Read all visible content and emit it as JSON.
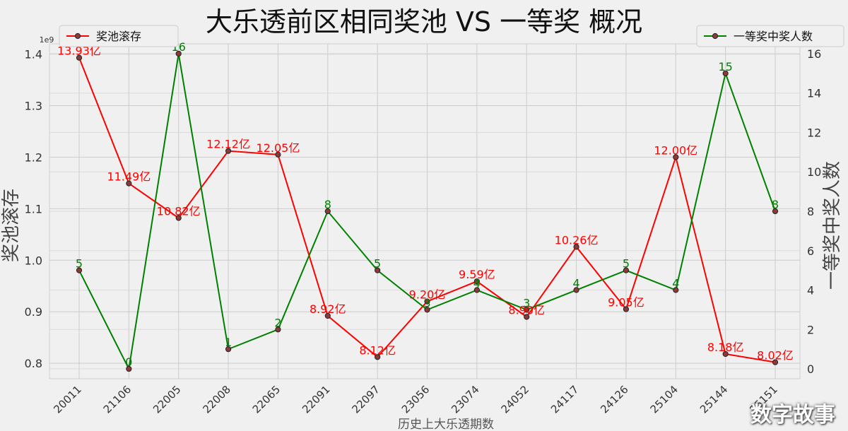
{
  "chart_data": {
    "type": "line",
    "title": "大乐透前区相同奖池 VS 一等奖 概况",
    "xlabel": "历史上大乐透期数",
    "ylabel_left": "奖池滚存",
    "ylabel_right": "一等奖中奖人数",
    "left_axis_multiplier": "1e9",
    "categories": [
      "20011",
      "21106",
      "22005",
      "22008",
      "22065",
      "22091",
      "22097",
      "23056",
      "23074",
      "24052",
      "24117",
      "24126",
      "25104",
      "25144",
      "25151"
    ],
    "ylim_left": [
      0.77,
      1.42
    ],
    "ylim_right": [
      -0.5,
      16.5
    ],
    "yticks_left": [
      "0.8",
      "0.9",
      "1.0",
      "1.1",
      "1.2",
      "1.3",
      "1.4"
    ],
    "yticks_right": [
      "0",
      "2",
      "4",
      "6",
      "8",
      "10",
      "12",
      "14",
      "16"
    ],
    "grid": true,
    "series": [
      {
        "name": "奖池滚存",
        "axis": "left",
        "color": "#ff0000",
        "values": [
          1.393,
          1.149,
          1.082,
          1.212,
          1.205,
          0.892,
          0.812,
          0.92,
          0.959,
          0.89,
          1.026,
          0.905,
          1.2,
          0.818,
          0.802
        ],
        "labels": [
          "13.93亿",
          "11.49亿",
          "10.82亿",
          "12.12亿",
          "12.05亿",
          "8.92亿",
          "8.12亿",
          "9.20亿",
          "9.59亿",
          "8.90亿",
          "10.26亿",
          "9.05亿",
          "12.00亿",
          "8.18亿",
          "8.02亿"
        ]
      },
      {
        "name": "一等奖中奖人数",
        "axis": "right",
        "color": "#008000",
        "values": [
          5,
          0,
          16,
          1,
          2,
          8,
          5,
          3,
          4,
          3,
          4,
          5,
          4,
          15,
          8
        ],
        "labels": [
          "5",
          "0",
          "16",
          "1",
          "2",
          "8",
          "5",
          "3",
          "4",
          "3",
          "4",
          "5",
          "4",
          "15",
          "8"
        ]
      }
    ],
    "legend_left_position": "top-left",
    "legend_right_position": "top-right"
  },
  "watermark": "数字故事"
}
